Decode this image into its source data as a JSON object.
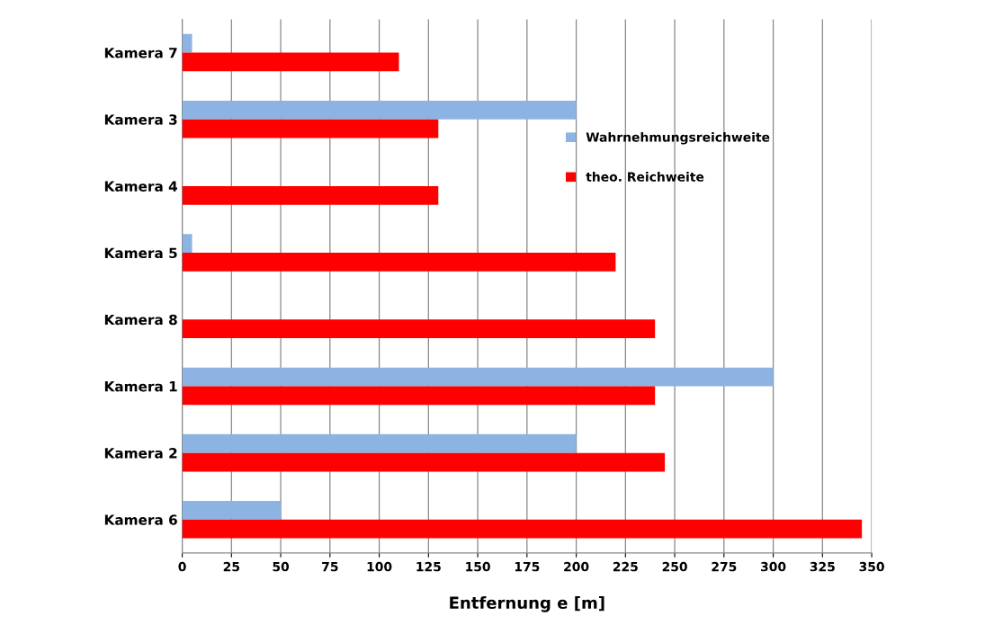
{
  "chart_data": {
    "type": "bar",
    "orientation": "horizontal",
    "xlabel": "Entfernung e [m]",
    "categories": [
      "Kamera 7",
      "Kamera 3",
      "Kamera 4",
      "Kamera 5",
      "Kamera 8",
      "Kamera 1",
      "Kamera 2",
      "Kamera 6"
    ],
    "series": [
      {
        "name": "Wahrnehmungsreichweite",
        "color": "#8db3e2",
        "values": [
          5,
          200,
          null,
          5,
          null,
          300,
          200,
          50
        ]
      },
      {
        "name": "theo. Reichweite",
        "color": "#ff0000",
        "values": [
          110,
          130,
          130,
          220,
          240,
          240,
          245,
          345
        ]
      }
    ],
    "xlim": [
      0,
      350
    ],
    "xticks": [
      0,
      25,
      50,
      75,
      100,
      125,
      150,
      175,
      200,
      225,
      250,
      275,
      300,
      325,
      350
    ],
    "grid": "x",
    "legend": "right"
  }
}
